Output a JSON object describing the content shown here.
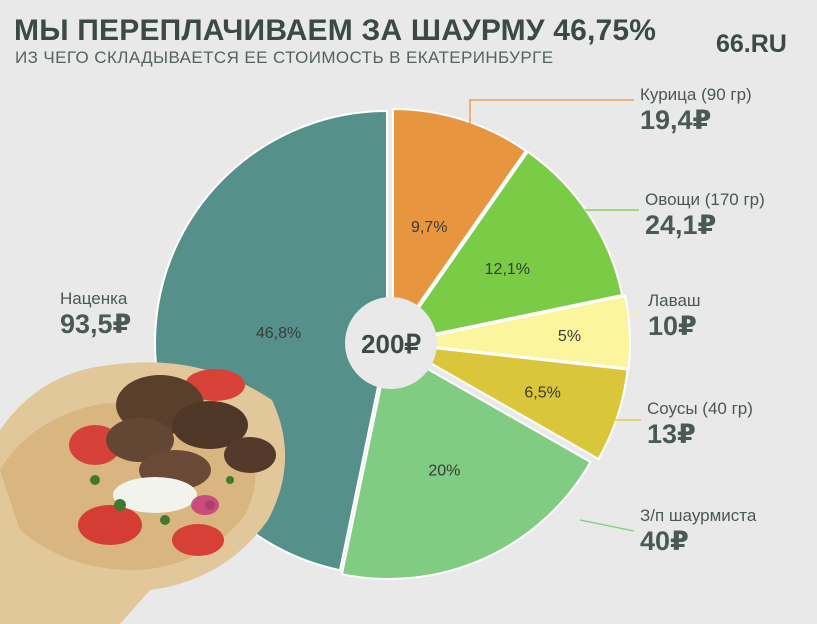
{
  "header": {
    "title": "МЫ ПЕРЕПЛАЧИВАЕМ ЗА ШАУРМУ 46,75%",
    "subtitle": "ИЗ ЧЕГО СКЛАДЫВАЕТСЯ ЕЕ СТОИМОСТЬ В ЕКАТЕРИНБУРГЕ",
    "brand": "66.RU"
  },
  "chart_data": {
    "type": "pie",
    "title": "МЫ ПЕРЕПЛАЧИВАЕМ ЗА ШАУРМУ 46,75%",
    "subtitle": "ИЗ ЧЕГО СКЛАДЫВАЕТСЯ ЕЕ СТОИМОСТЬ В ЕКАТЕРИНБУРГЕ",
    "center_label": "200₽",
    "total": 200,
    "slices": [
      {
        "name": "Курица (90 гр)",
        "value": 19.4,
        "value_label": "19,4₽",
        "percent": 9.7,
        "percent_label": "9,7%",
        "color": "#e8953f"
      },
      {
        "name": "Овощи (170 гр)",
        "value": 24.1,
        "value_label": "24,1₽",
        "percent": 12.1,
        "percent_label": "12,1%",
        "color": "#7acb45"
      },
      {
        "name": "Лаваш",
        "value": 10,
        "value_label": "10₽",
        "percent": 5,
        "percent_label": "5%",
        "color": "#fbf59d"
      },
      {
        "name": "Соусы (40 гр)",
        "value": 13,
        "value_label": "13₽",
        "percent": 6.5,
        "percent_label": "6,5%",
        "color": "#d9c63a"
      },
      {
        "name": "З/п шаурмиста",
        "value": 40,
        "value_label": "40₽",
        "percent": 20,
        "percent_label": "20%",
        "color": "#7fcc82"
      },
      {
        "name": "Наценка",
        "value": 93.5,
        "value_label": "93,5₽",
        "percent": 46.8,
        "percent_label": "46,8%",
        "color": "#55918a"
      }
    ]
  }
}
